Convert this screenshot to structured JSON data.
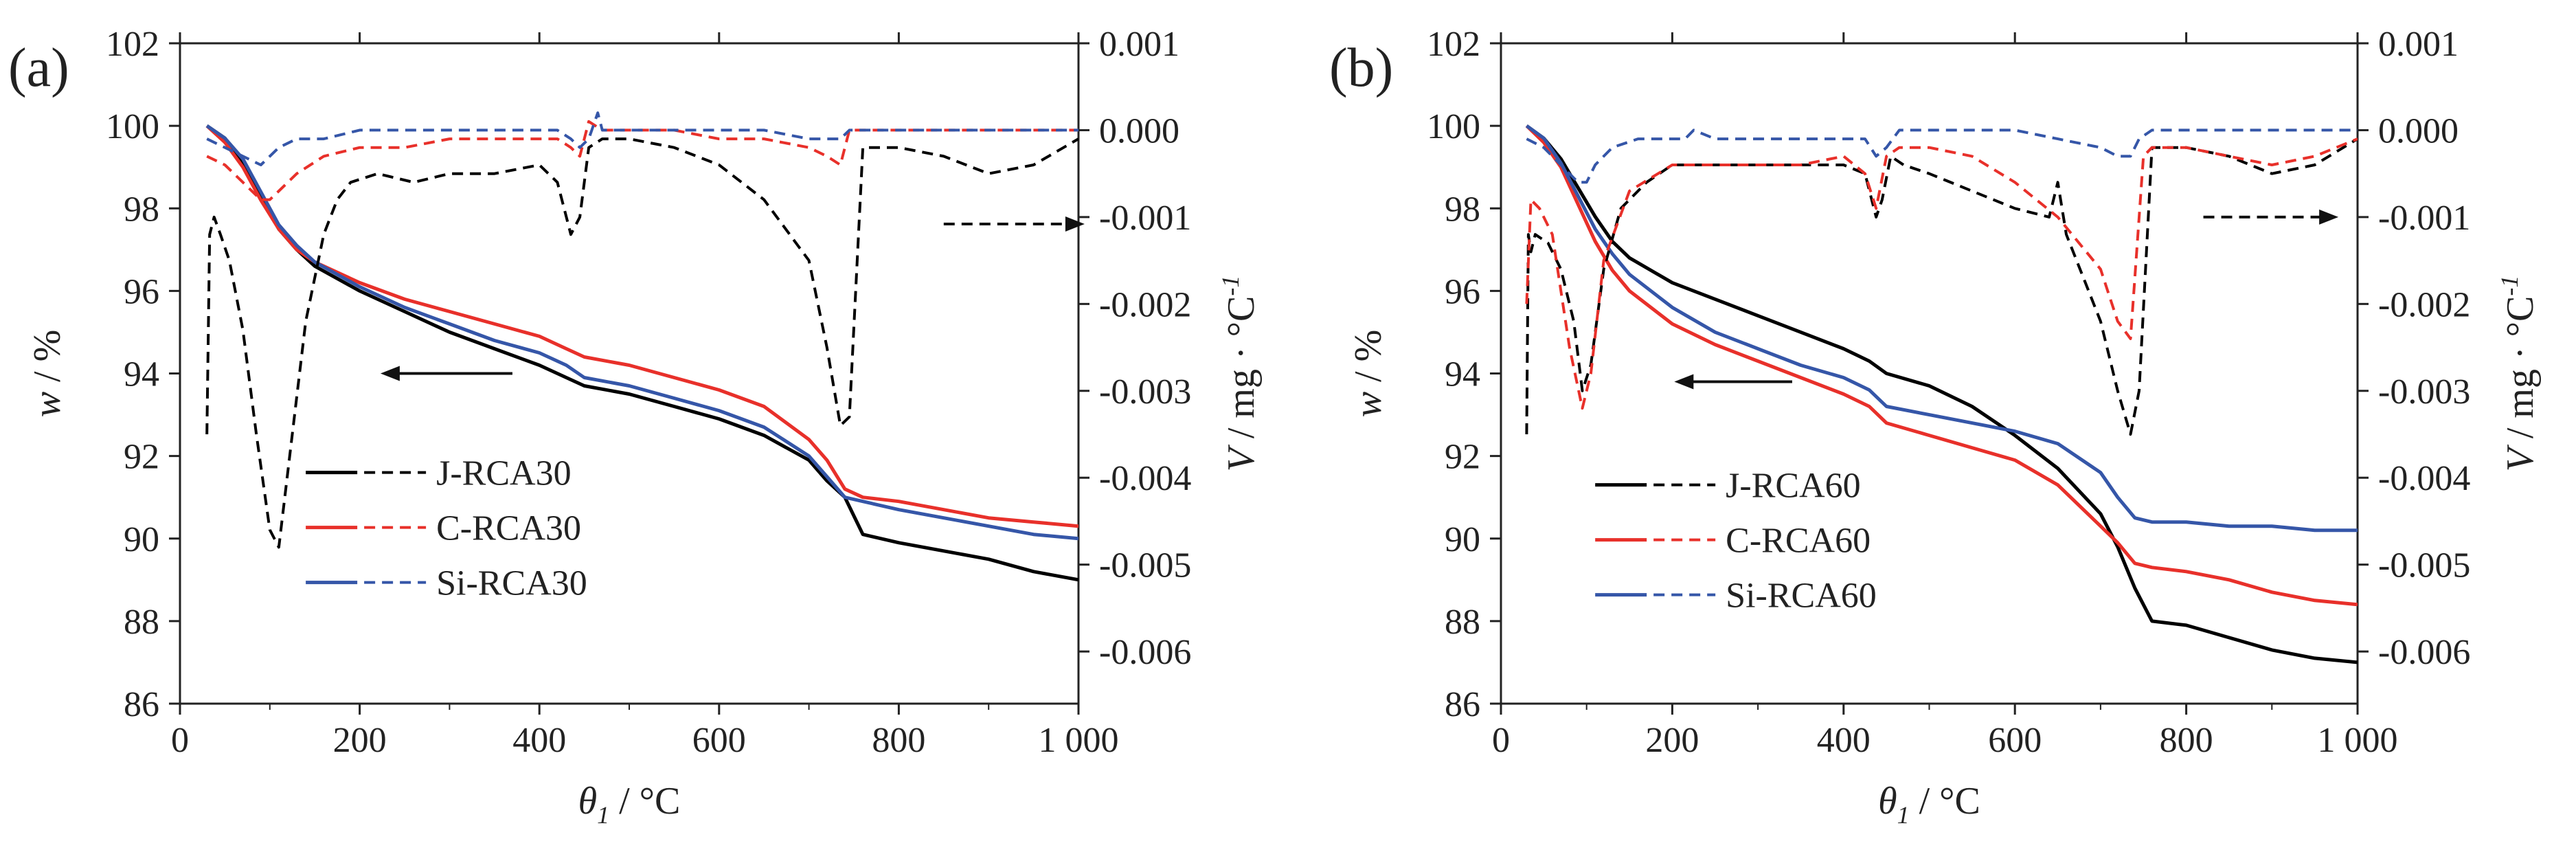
{
  "chart_data": [
    {
      "type": "line",
      "panel_label": "(a)",
      "xlabel": {
        "symbol": "θ",
        "sub": "1",
        "unit": " / °C"
      },
      "ylabel_left": {
        "symbol": "w",
        "unit": " / %"
      },
      "ylabel_right": {
        "symbol": "V",
        "unit": " / mg · °C",
        "sup": "-1"
      },
      "xlim": [
        0,
        1000
      ],
      "ylim_left": [
        86,
        102
      ],
      "ylim_right": [
        -0.0066,
        0.001
      ],
      "x_ticks": [
        0,
        200,
        400,
        600,
        800,
        1000
      ],
      "x_tick_labels": [
        "0",
        "200",
        "400",
        "600",
        "800",
        "1 000"
      ],
      "y_left_ticks": [
        86,
        88,
        90,
        92,
        94,
        96,
        98,
        100,
        102
      ],
      "y_left_tick_labels": [
        "86",
        "88",
        "90",
        "92",
        "94",
        "96",
        "98",
        "100",
        "102"
      ],
      "y_right_ticks": [
        -0.006,
        -0.005,
        -0.004,
        -0.003,
        -0.002,
        -0.001,
        0.0,
        0.001
      ],
      "y_right_tick_labels": [
        "-0.006",
        "-0.005",
        "-0.004",
        "-0.003",
        "-0.002",
        "-0.001",
        "0.000",
        "0.001"
      ],
      "arrows": [
        {
          "direction": "left",
          "axis": "left",
          "x_from": 370,
          "x_to": 240,
          "y": 94.0
        },
        {
          "direction": "right",
          "axis": "right",
          "x_from": 850,
          "x_to": 990,
          "y": -0.00108
        }
      ],
      "legend": [
        {
          "label": "J-RCA30",
          "color": "#000000"
        },
        {
          "label": "C-RCA30",
          "color": "#e8302a"
        },
        {
          "label": "Si-RCA30",
          "color": "#3556a8"
        }
      ],
      "series": [
        {
          "name": "J-RCA30 (w)",
          "color": "#000000",
          "style": "solid",
          "axis": "left",
          "x": [
            30,
            50,
            70,
            90,
            110,
            130,
            150,
            200,
            250,
            300,
            350,
            400,
            430,
            450,
            500,
            550,
            600,
            650,
            700,
            720,
            740,
            760,
            800,
            850,
            900,
            950,
            1000
          ],
          "y": [
            100,
            99.7,
            99.1,
            98.3,
            97.5,
            97.0,
            96.6,
            96.0,
            95.5,
            95.0,
            94.6,
            94.2,
            93.9,
            93.7,
            93.5,
            93.2,
            92.9,
            92.5,
            91.9,
            91.4,
            91.0,
            90.1,
            89.9,
            89.7,
            89.5,
            89.2,
            89.0
          ]
        },
        {
          "name": "C-RCA30 (w)",
          "color": "#e8302a",
          "style": "solid",
          "axis": "left",
          "x": [
            30,
            50,
            70,
            90,
            110,
            130,
            150,
            200,
            250,
            300,
            350,
            400,
            430,
            450,
            500,
            550,
            600,
            650,
            700,
            720,
            740,
            760,
            800,
            850,
            900,
            950,
            1000
          ],
          "y": [
            100,
            99.6,
            99.0,
            98.2,
            97.5,
            97.0,
            96.7,
            96.2,
            95.8,
            95.5,
            95.2,
            94.9,
            94.6,
            94.4,
            94.2,
            93.9,
            93.6,
            93.2,
            92.4,
            91.9,
            91.2,
            91.0,
            90.9,
            90.7,
            90.5,
            90.4,
            90.3
          ]
        },
        {
          "name": "Si-RCA30 (w)",
          "color": "#3556a8",
          "style": "solid",
          "axis": "left",
          "x": [
            30,
            50,
            70,
            90,
            110,
            130,
            150,
            200,
            250,
            300,
            350,
            400,
            430,
            450,
            500,
            550,
            600,
            650,
            700,
            720,
            740,
            760,
            800,
            850,
            900,
            950,
            1000
          ],
          "y": [
            100,
            99.7,
            99.2,
            98.4,
            97.6,
            97.1,
            96.7,
            96.1,
            95.6,
            95.2,
            94.8,
            94.5,
            94.2,
            93.9,
            93.7,
            93.4,
            93.1,
            92.7,
            92.0,
            91.5,
            91.0,
            90.9,
            90.7,
            90.5,
            90.3,
            90.1,
            90.0
          ]
        },
        {
          "name": "J-RCA30 (V)",
          "color": "#000000",
          "style": "dashed",
          "axis": "right",
          "x": [
            30,
            33,
            38,
            45,
            55,
            70,
            85,
            100,
            110,
            125,
            140,
            160,
            175,
            190,
            220,
            260,
            300,
            350,
            400,
            420,
            435,
            445,
            455,
            470,
            500,
            550,
            600,
            650,
            700,
            720,
            735,
            745,
            760,
            800,
            850,
            900,
            950,
            1000
          ],
          "y": [
            -0.0035,
            -0.0012,
            -0.001,
            -0.0012,
            -0.0015,
            -0.0023,
            -0.0035,
            -0.0046,
            -0.0048,
            -0.0035,
            -0.0022,
            -0.0012,
            -0.0008,
            -0.0006,
            -0.0005,
            -0.0006,
            -0.0005,
            -0.0005,
            -0.0004,
            -0.0006,
            -0.0012,
            -0.001,
            -0.0002,
            -0.0001,
            -0.0001,
            -0.0002,
            -0.0004,
            -0.0008,
            -0.0015,
            -0.0025,
            -0.0034,
            -0.0033,
            -0.0002,
            -0.0002,
            -0.0003,
            -0.0005,
            -0.0004,
            -0.0001
          ]
        },
        {
          "name": "C-RCA30 (V)",
          "color": "#e8302a",
          "style": "dashed",
          "axis": "right",
          "x": [
            30,
            50,
            70,
            90,
            100,
            110,
            130,
            160,
            200,
            250,
            300,
            350,
            400,
            420,
            435,
            445,
            455,
            470,
            500,
            550,
            600,
            650,
            700,
            720,
            735,
            745,
            760,
            800,
            850,
            900,
            950,
            1000
          ],
          "y": [
            -0.0003,
            -0.0004,
            -0.0006,
            -0.0008,
            -0.0008,
            -0.0007,
            -0.0005,
            -0.0003,
            -0.0002,
            -0.0002,
            -0.0001,
            -0.0001,
            -0.0001,
            -0.0001,
            -0.0002,
            -0.0003,
            0.0001,
            0.0,
            0.0,
            0.0,
            -0.0001,
            -0.0001,
            -0.0002,
            -0.0003,
            -0.0004,
            0.0,
            0.0,
            0.0,
            0.0,
            0.0,
            0.0,
            0.0
          ]
        },
        {
          "name": "Si-RCA30 (V)",
          "color": "#3556a8",
          "style": "dashed",
          "axis": "right",
          "x": [
            30,
            50,
            70,
            90,
            100,
            110,
            130,
            160,
            200,
            250,
            300,
            350,
            400,
            420,
            435,
            445,
            455,
            465,
            470,
            500,
            550,
            600,
            650,
            700,
            720,
            735,
            745,
            760,
            800,
            850,
            900,
            950,
            1000
          ],
          "y": [
            -0.0001,
            -0.0002,
            -0.0003,
            -0.0004,
            -0.0003,
            -0.0002,
            -0.0001,
            -0.0001,
            0.0,
            0.0,
            0.0,
            0.0,
            0.0,
            0.0,
            -0.0001,
            -0.0002,
            -0.0001,
            0.0002,
            0.0,
            0.0,
            0.0,
            0.0,
            0.0,
            -0.0001,
            -0.0001,
            -0.0001,
            0.0,
            0.0,
            0.0,
            0.0,
            0.0,
            0.0,
            0.0
          ]
        }
      ]
    },
    {
      "type": "line",
      "panel_label": "(b)",
      "xlabel": {
        "symbol": "θ",
        "sub": "1",
        "unit": " / °C"
      },
      "ylabel_left": {
        "symbol": "w",
        "unit": " / %"
      },
      "ylabel_right": {
        "symbol": "V",
        "unit": " / mg · °C",
        "sup": "-1"
      },
      "xlim": [
        0,
        1000
      ],
      "ylim_left": [
        86,
        102
      ],
      "ylim_right": [
        -0.0066,
        0.001
      ],
      "x_ticks": [
        0,
        200,
        400,
        600,
        800,
        1000
      ],
      "x_tick_labels": [
        "0",
        "200",
        "400",
        "600",
        "800",
        "1 000"
      ],
      "y_left_ticks": [
        86,
        88,
        90,
        92,
        94,
        96,
        98,
        100,
        102
      ],
      "y_left_tick_labels": [
        "86",
        "88",
        "90",
        "92",
        "94",
        "96",
        "98",
        "100",
        "102"
      ],
      "y_right_ticks": [
        -0.006,
        -0.005,
        -0.004,
        -0.003,
        -0.002,
        -0.001,
        0.0,
        0.001
      ],
      "y_right_tick_labels": [
        "-0.006",
        "-0.005",
        "-0.004",
        "-0.003",
        "-0.002",
        "-0.001",
        "0.000",
        "0.001"
      ],
      "arrows": [
        {
          "direction": "left",
          "axis": "left",
          "x_from": 340,
          "x_to": 220,
          "y": 93.8
        },
        {
          "direction": "right",
          "axis": "right",
          "x_from": 820,
          "x_to": 960,
          "y": -0.001
        }
      ],
      "legend": [
        {
          "label": "J-RCA60",
          "color": "#000000"
        },
        {
          "label": "C-RCA60",
          "color": "#e8302a"
        },
        {
          "label": "Si-RCA60",
          "color": "#3556a8"
        }
      ],
      "series": [
        {
          "name": "J-RCA60 (w)",
          "color": "#000000",
          "style": "solid",
          "axis": "left",
          "x": [
            30,
            50,
            70,
            90,
            110,
            130,
            150,
            200,
            250,
            300,
            350,
            400,
            430,
            450,
            500,
            550,
            600,
            650,
            700,
            720,
            740,
            760,
            800,
            850,
            900,
            950,
            1000
          ],
          "y": [
            100,
            99.7,
            99.2,
            98.5,
            97.8,
            97.2,
            96.8,
            96.2,
            95.8,
            95.4,
            95.0,
            94.6,
            94.3,
            94.0,
            93.7,
            93.2,
            92.5,
            91.7,
            90.6,
            89.8,
            88.8,
            88.0,
            87.9,
            87.6,
            87.3,
            87.1,
            87.0
          ]
        },
        {
          "name": "C-RCA60 (w)",
          "color": "#e8302a",
          "style": "solid",
          "axis": "left",
          "x": [
            30,
            50,
            70,
            90,
            110,
            130,
            150,
            200,
            250,
            300,
            350,
            400,
            430,
            450,
            500,
            550,
            600,
            650,
            700,
            720,
            740,
            760,
            800,
            850,
            900,
            950,
            1000
          ],
          "y": [
            100,
            99.6,
            99.0,
            98.1,
            97.2,
            96.5,
            96.0,
            95.2,
            94.7,
            94.3,
            93.9,
            93.5,
            93.2,
            92.8,
            92.5,
            92.2,
            91.9,
            91.3,
            90.3,
            89.9,
            89.4,
            89.3,
            89.2,
            89.0,
            88.7,
            88.5,
            88.4
          ]
        },
        {
          "name": "Si-RCA60 (w)",
          "color": "#3556a8",
          "style": "solid",
          "axis": "left",
          "x": [
            30,
            50,
            70,
            90,
            110,
            130,
            150,
            200,
            250,
            300,
            350,
            400,
            430,
            450,
            500,
            550,
            600,
            650,
            700,
            720,
            740,
            760,
            800,
            850,
            900,
            950,
            1000
          ],
          "y": [
            100,
            99.7,
            99.1,
            98.3,
            97.5,
            96.9,
            96.4,
            95.6,
            95.0,
            94.6,
            94.2,
            93.9,
            93.6,
            93.2,
            93.0,
            92.8,
            92.6,
            92.3,
            91.6,
            91.0,
            90.5,
            90.4,
            90.4,
            90.3,
            90.3,
            90.2,
            90.2
          ]
        },
        {
          "name": "J-RCA60 (V)",
          "color": "#000000",
          "style": "dashed",
          "axis": "right",
          "x": [
            30,
            32,
            35,
            40,
            55,
            70,
            85,
            95,
            105,
            120,
            140,
            170,
            200,
            250,
            300,
            350,
            400,
            425,
            438,
            445,
            455,
            470,
            500,
            550,
            600,
            640,
            650,
            660,
            680,
            700,
            720,
            735,
            745,
            760,
            800,
            850,
            900,
            950,
            1000
          ],
          "y": [
            -0.0035,
            -0.0012,
            -0.0014,
            -0.0012,
            -0.0013,
            -0.0016,
            -0.0022,
            -0.003,
            -0.0027,
            -0.0016,
            -0.0009,
            -0.0006,
            -0.0004,
            -0.0004,
            -0.0004,
            -0.0004,
            -0.0004,
            -0.0005,
            -0.001,
            -0.0008,
            -0.0003,
            -0.0004,
            -0.0005,
            -0.0007,
            -0.0009,
            -0.001,
            -0.0006,
            -0.0012,
            -0.0017,
            -0.0022,
            -0.003,
            -0.0035,
            -0.003,
            -0.0002,
            -0.0002,
            -0.0003,
            -0.0005,
            -0.0004,
            -0.0001
          ]
        },
        {
          "name": "C-RCA60 (V)",
          "color": "#e8302a",
          "style": "dashed",
          "axis": "right",
          "x": [
            30,
            35,
            45,
            60,
            80,
            95,
            105,
            120,
            150,
            200,
            250,
            300,
            350,
            400,
            425,
            438,
            450,
            465,
            500,
            550,
            600,
            650,
            700,
            720,
            735,
            750,
            760,
            800,
            850,
            900,
            950,
            1000
          ],
          "y": [
            -0.002,
            -0.0008,
            -0.0009,
            -0.0012,
            -0.0025,
            -0.0032,
            -0.0028,
            -0.0015,
            -0.0007,
            -0.0004,
            -0.0004,
            -0.0004,
            -0.0004,
            -0.0003,
            -0.0005,
            -0.0009,
            -0.0003,
            -0.0002,
            -0.0002,
            -0.0003,
            -0.0006,
            -0.001,
            -0.0016,
            -0.0022,
            -0.0024,
            -0.0003,
            -0.0002,
            -0.0002,
            -0.0003,
            -0.0004,
            -0.0003,
            -0.0001
          ]
        },
        {
          "name": "Si-RCA60 (V)",
          "color": "#3556a8",
          "style": "dashed",
          "axis": "right",
          "x": [
            30,
            50,
            70,
            90,
            100,
            110,
            130,
            160,
            200,
            215,
            225,
            250,
            300,
            350,
            400,
            425,
            438,
            450,
            465,
            500,
            550,
            600,
            650,
            700,
            720,
            735,
            745,
            760,
            800,
            850,
            900,
            950,
            1000
          ],
          "y": [
            -0.0001,
            -0.0002,
            -0.0004,
            -0.0006,
            -0.0006,
            -0.0004,
            -0.0002,
            -0.0001,
            -0.0001,
            -0.0001,
            0.0,
            -0.0001,
            -0.0001,
            -0.0001,
            -0.0001,
            -0.0001,
            -0.0003,
            -0.0002,
            0.0,
            0.0,
            0.0,
            0.0,
            -0.0001,
            -0.0002,
            -0.0003,
            -0.0003,
            -0.0001,
            0.0,
            0.0,
            0.0,
            0.0,
            0.0,
            0.0
          ]
        }
      ]
    }
  ]
}
